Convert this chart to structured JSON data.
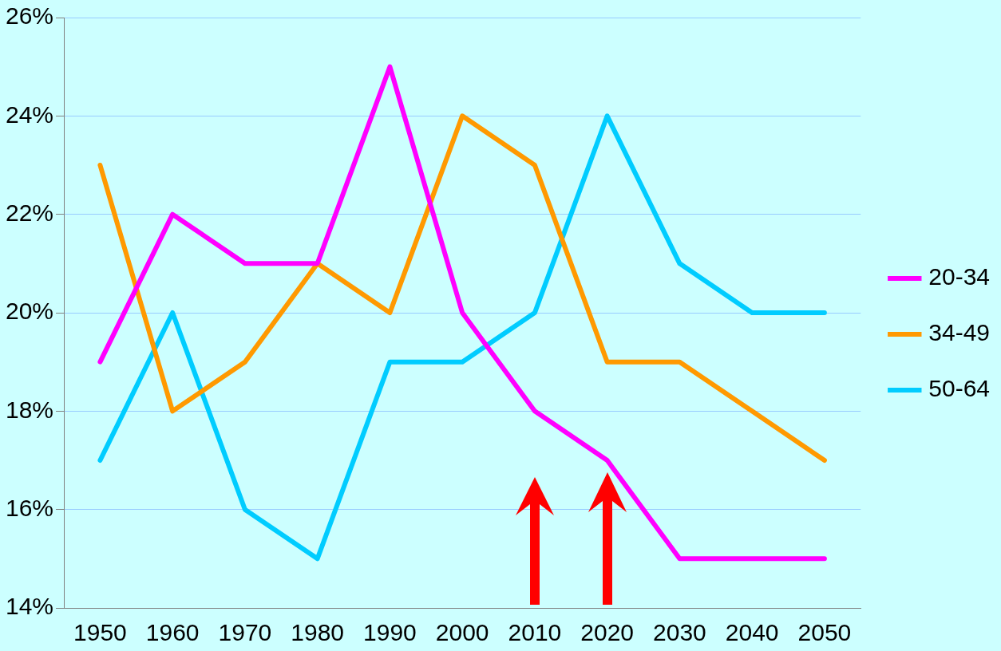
{
  "chart_data": {
    "type": "line",
    "categories": [
      "1950",
      "1960",
      "1970",
      "1980",
      "1990",
      "2000",
      "2010",
      "2020",
      "2030",
      "2040",
      "2050"
    ],
    "series": [
      {
        "name": "20-34",
        "color": "#ff00ff",
        "values": [
          19,
          22,
          21,
          21,
          25,
          20,
          18,
          17,
          15,
          15,
          15
        ]
      },
      {
        "name": "34-49",
        "color": "#ff9900",
        "values": [
          23,
          18,
          19,
          21,
          20,
          24,
          23,
          19,
          19,
          18,
          17
        ]
      },
      {
        "name": "50-64",
        "color": "#00ccff",
        "values": [
          17,
          20,
          16,
          15,
          19,
          19,
          20,
          24,
          21,
          20,
          20
        ]
      }
    ],
    "ylim": [
      14,
      26
    ],
    "yticks": [
      {
        "value": 14,
        "label": "14%"
      },
      {
        "value": 16,
        "label": "16%"
      },
      {
        "value": 18,
        "label": "18%"
      },
      {
        "value": 20,
        "label": "20%"
      },
      {
        "value": 22,
        "label": "22%"
      },
      {
        "value": 24,
        "label": "24%"
      },
      {
        "value": 26,
        "label": "26%"
      }
    ],
    "grid": "y",
    "legend": "right",
    "marker": "none",
    "line_style": "solid"
  }
}
